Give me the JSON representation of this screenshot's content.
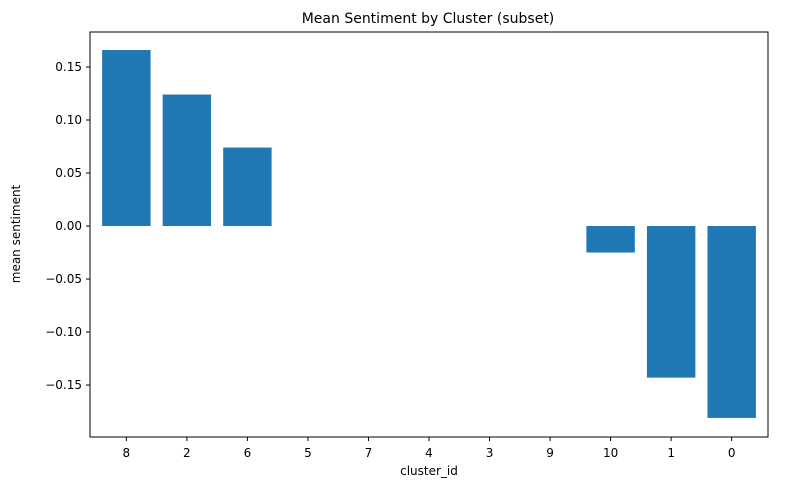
{
  "chart_data": {
    "type": "bar",
    "title": "Mean Sentiment by Cluster (subset)",
    "xlabel": "cluster_id",
    "ylabel": "mean sentiment",
    "categories": [
      "8",
      "2",
      "6",
      "5",
      "7",
      "4",
      "3",
      "9",
      "10",
      "1",
      "0"
    ],
    "values": [
      0.166,
      0.124,
      0.074,
      0.0,
      0.0,
      0.0,
      0.0,
      0.0,
      -0.025,
      -0.143,
      -0.181
    ],
    "ylim": [
      -0.199,
      0.183
    ],
    "yticks": [
      -0.15,
      -0.1,
      -0.05,
      0.0,
      0.05,
      0.1,
      0.15
    ],
    "ytick_labels": [
      "−0.15",
      "−0.10",
      "−0.05",
      "0.00",
      "0.05",
      "0.10",
      "0.15"
    ],
    "bar_color": "#1f77b4",
    "grid": false,
    "legend": "none"
  }
}
